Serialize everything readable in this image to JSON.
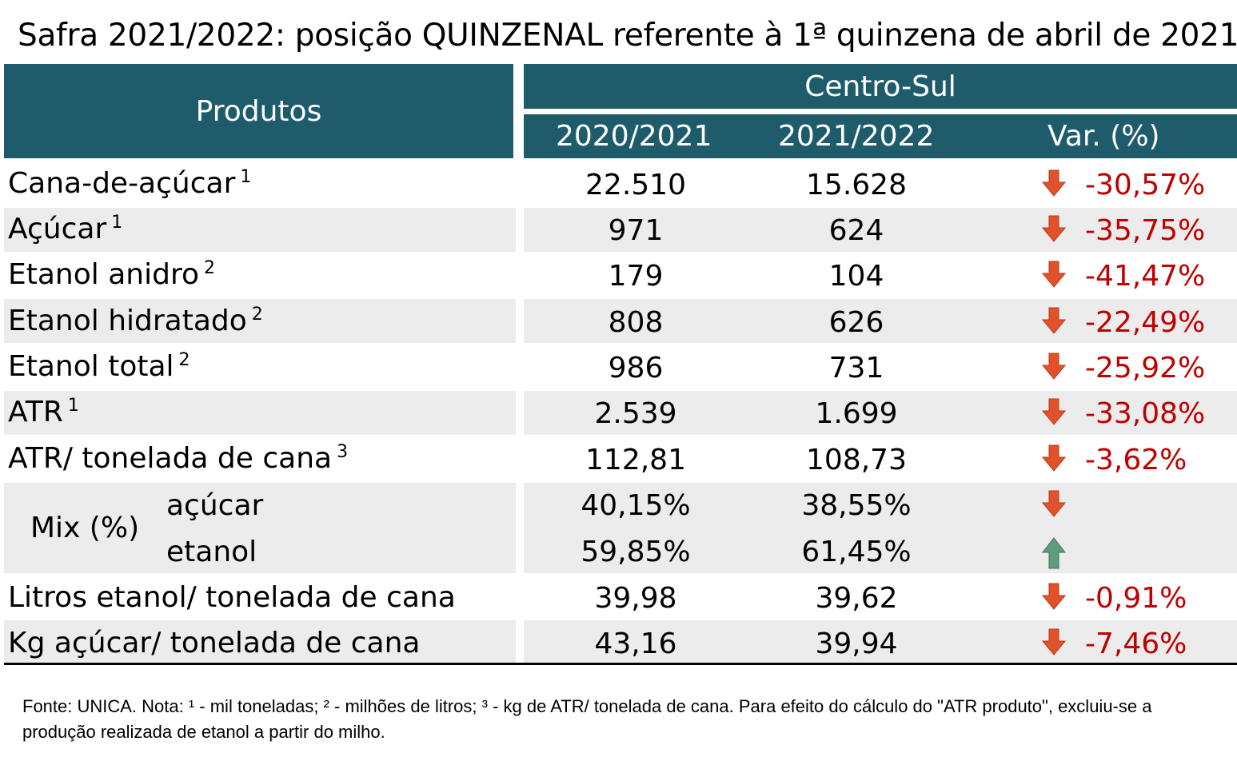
{
  "title": "Safra 2021/2022: posição QUINZENAL referente à 1ª quinzena de abril de 2021",
  "header": {
    "produtos": "Produtos",
    "region": "Centro-Sul",
    "col1": "2020/2021",
    "col2": "2021/2022",
    "col3": "Var. (%)"
  },
  "rows": [
    {
      "label": "Cana-de-açúcar",
      "note": "1",
      "v1": "22.510",
      "v2": "15.628",
      "var": "-30,57%",
      "dir": "down"
    },
    {
      "label": "Açúcar",
      "note": "1",
      "v1": "971",
      "v2": "624",
      "var": "-35,75%",
      "dir": "down"
    },
    {
      "label": "Etanol anidro",
      "note": "2",
      "v1": "179",
      "v2": "104",
      "var": "-41,47%",
      "dir": "down"
    },
    {
      "label": "Etanol hidratado",
      "note": "2",
      "v1": "808",
      "v2": "626",
      "var": "-22,49%",
      "dir": "down"
    },
    {
      "label": "Etanol total",
      "note": "2",
      "v1": "986",
      "v2": "731",
      "var": "-25,92%",
      "dir": "down"
    },
    {
      "label": "ATR",
      "note": "1",
      "v1": "2.539",
      "v2": "1.699",
      "var": "-33,08%",
      "dir": "down"
    },
    {
      "label": "ATR/ tonelada de cana",
      "note": "3",
      "v1": "112,81",
      "v2": "108,73",
      "var": "-3,62%",
      "dir": "down"
    }
  ],
  "mix": {
    "label": "Mix (%)",
    "acucar": {
      "label": "açúcar",
      "v1": "40,15%",
      "v2": "38,55%",
      "dir": "down"
    },
    "etanol": {
      "label": "etanol",
      "v1": "59,85%",
      "v2": "61,45%",
      "dir": "up"
    }
  },
  "tail_rows": [
    {
      "label": "Litros etanol/ tonelada de cana",
      "v1": "39,98",
      "v2": "39,62",
      "var": "-0,91%",
      "dir": "down"
    },
    {
      "label": "Kg açúcar/ tonelada de cana",
      "v1": "43,16",
      "v2": "39,94",
      "var": "-7,46%",
      "dir": "down"
    }
  ],
  "footnote": "Fonte: UNICA. Nota: ¹ - mil toneladas; ² - milhões de litros; ³ - kg de ATR/ tonelada de cana. Para efeito do cálculo do \"ATR produto\", excluiu-se a produção realizada de etanol a partir do milho.",
  "colors": {
    "header_bg": "#1f5c6b",
    "negative": "#c00000",
    "arrow_down": "#e2522a",
    "arrow_up": "#5e9c7f",
    "stripe": "#ececec"
  }
}
